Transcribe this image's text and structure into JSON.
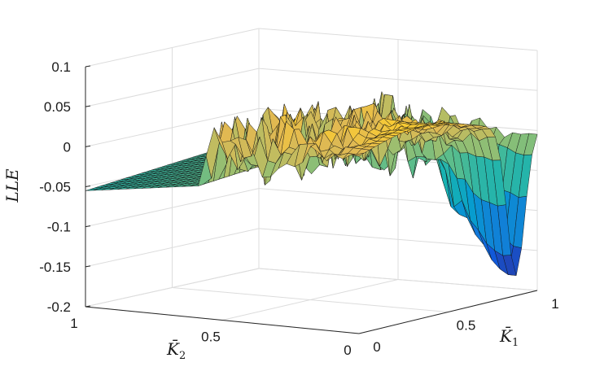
{
  "chart_data": {
    "type": "surface",
    "colormap": "parula",
    "zlabel": "LLE",
    "xlabel": {
      "base": "K̄",
      "sub": "1"
    },
    "ylabel": {
      "base": "K̄",
      "sub": "2"
    },
    "xlim": [
      0,
      1
    ],
    "ylim": [
      0,
      1
    ],
    "zlim": [
      -0.2,
      0.1
    ],
    "xticks": [
      0,
      0.5,
      1
    ],
    "xtick_labels": [
      "0",
      "0.5",
      "1"
    ],
    "yticks": [
      0,
      0.5,
      1
    ],
    "ytick_labels": [
      "0",
      "0.5",
      "1"
    ],
    "zticks": [
      -0.2,
      -0.15,
      -0.1,
      -0.05,
      0,
      0.05,
      0.1
    ],
    "ztick_labels": [
      "-0.2",
      "-0.15",
      "-0.1",
      "-0.05",
      "0",
      "0.05",
      "0.1"
    ],
    "grid": true,
    "grid_resolution": 34,
    "surface_features": {
      "flat_plateau": {
        "region": "K2 > 0.55",
        "value_at_K2_eq_1": -0.055,
        "value_near_K2_0_6": -0.035
      },
      "chaotic_ridge": {
        "K2_range": [
          0.3,
          0.6
        ],
        "mean": 0.012,
        "spike_range": [
          -0.04,
          0.05
        ]
      },
      "smooth_hill": {
        "K2_range": [
          0,
          0.3
        ],
        "peak": 0.04
      },
      "deep_trough": {
        "K1_at_K2_0": 0.9,
        "min": -0.175
      }
    }
  }
}
